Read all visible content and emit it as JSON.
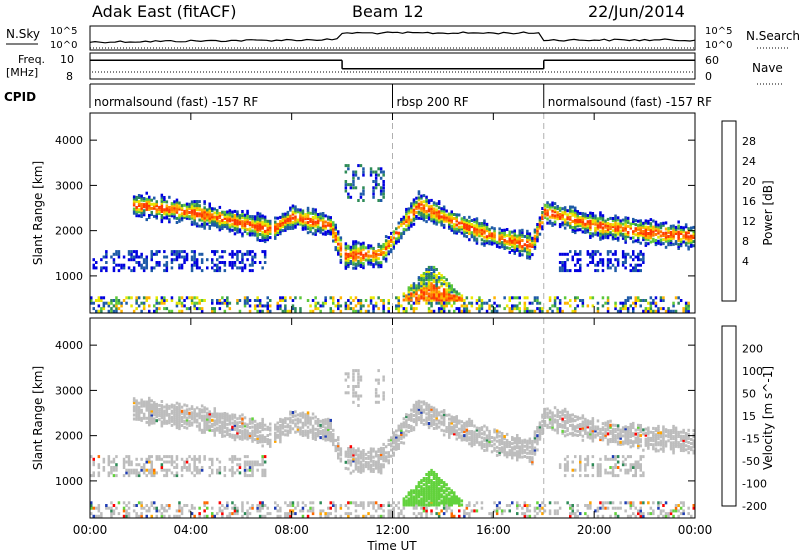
{
  "header": {
    "radar_title": "Adak East (fitACF)",
    "beam_title": "Beam 12",
    "date": "22/Jun/2014"
  },
  "top_panels": {
    "nsky_label": "N.Sky",
    "nsky_ticks": [
      "10^5",
      "10^0"
    ],
    "nsearch_label": "N.Search",
    "nsearch_ticks": [
      "10^5",
      "10^0"
    ],
    "freq_label_1": "Freq.",
    "freq_label_2": "[MHz]",
    "freq_ticks": [
      "10",
      "8"
    ],
    "nave_label": "Nave",
    "nave_ticks": [
      "60",
      "0"
    ],
    "cpid_label": "CPID",
    "modes": [
      {
        "label": "normalsound (fast) -157 RF",
        "start_hour": 0,
        "end_hour": 12
      },
      {
        "label": "rbsp 200 RF",
        "start_hour": 12,
        "end_hour": 18
      },
      {
        "label": "normalsound (fast) -157 RF",
        "start_hour": 18,
        "end_hour": 24
      }
    ],
    "freq_series_mhz": [
      {
        "start_hour": 0,
        "end_hour": 10,
        "value": 10.2
      },
      {
        "start_hour": 10,
        "end_hour": 18,
        "value": 9.2
      },
      {
        "start_hour": 18,
        "end_hour": 24,
        "value": 10.2
      }
    ]
  },
  "chart_data": [
    {
      "type": "heatmap",
      "ylabel": "Slant Range [km]",
      "yticks": [
        "4000",
        "3000",
        "2000",
        "1000"
      ],
      "ylim": [
        180,
        4600
      ],
      "xlim": [
        0,
        24
      ],
      "colorbar_label": "Power [dB]",
      "colorbar_ticks": [
        "28",
        "24",
        "20",
        "16",
        "12",
        "8",
        "4"
      ],
      "colorbar_colors": [
        "#d10000",
        "#ff3b00",
        "#ff7a00",
        "#ffb400",
        "#e8e800",
        "#5cc83a",
        "#2e8b57",
        "#1e5aa8",
        "#0000e0"
      ],
      "dashed_lines_hour": [
        12,
        18
      ],
      "echo_bands": [
        {
          "x": [
            1.8,
            4.0,
            6.0,
            7.2,
            8.0,
            9.5,
            10.0,
            11.5,
            13.0,
            14.5,
            16.0,
            17.5,
            18.0,
            20.0,
            22.0,
            24.0
          ],
          "y": [
            2600,
            2450,
            2200,
            2050,
            2350,
            2150,
            1500,
            1500,
            2600,
            2200,
            1900,
            1700,
            2450,
            2150,
            2000,
            1900
          ]
        }
      ]
    },
    {
      "type": "heatmap",
      "ylabel": "Slant Range [km]",
      "yticks": [
        "4000",
        "3000",
        "2000",
        "1000"
      ],
      "ylim": [
        180,
        4600
      ],
      "xlim": [
        0,
        24
      ],
      "colorbar_label": "Velocity [m s^-1]",
      "colorbar_ticks": [
        "200",
        "100",
        "50",
        "15",
        "-15",
        "-50",
        "-100",
        "-200"
      ],
      "colorbar_colors": [
        "#1e3cb4",
        "#2e8b57",
        "#62d23c",
        "#bdbdbd",
        "#bdbdbd",
        "#ffa500",
        "#ff6a00",
        "#ff0000"
      ],
      "xticks": [
        "00:00",
        "04:00",
        "08:00",
        "12:00",
        "16:00",
        "20:00",
        "00:00"
      ],
      "xlabel": "Time UT",
      "dashed_lines_hour": [
        12,
        18
      ]
    }
  ]
}
